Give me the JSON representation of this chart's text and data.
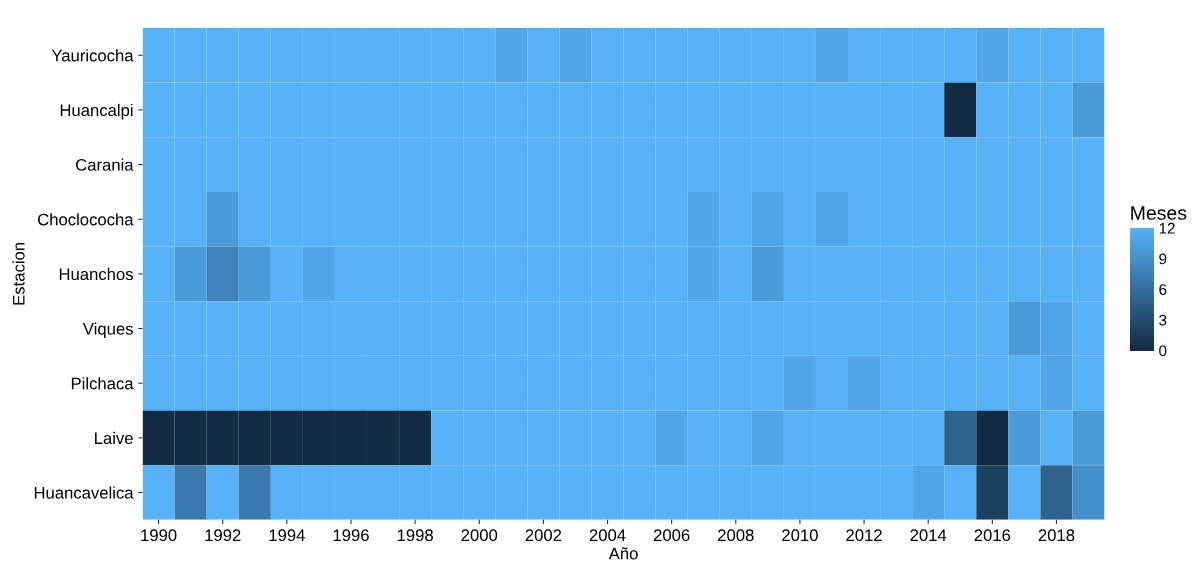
{
  "chart_data": {
    "type": "heatmap",
    "xlabel": "Año",
    "ylabel": "Estacion",
    "legend_title": "Meses",
    "categories": [
      "1990",
      null,
      "1992",
      null,
      "1994",
      null,
      "1996",
      null,
      "1998",
      null,
      "2000",
      null,
      "2002",
      null,
      "2004",
      null,
      "2006",
      null,
      "2008",
      null,
      "2010",
      null,
      "2012",
      null,
      "2014",
      null,
      "2016",
      null,
      "2018",
      null
    ],
    "y_categories": [
      "Yauricocha",
      "Huancalpi",
      "Carania",
      "Choclococha",
      "Huanchos",
      "Viques",
      "Pilchaca",
      "Laive",
      "Huancavelica"
    ],
    "cells": [
      [
        12,
        12,
        12,
        12,
        12,
        12,
        12,
        12,
        12,
        12,
        12,
        11,
        12,
        11,
        12,
        12,
        12,
        12,
        12,
        12,
        12,
        11,
        12,
        12,
        12,
        12,
        11,
        12,
        12,
        12
      ],
      [
        12,
        12,
        12,
        12,
        12,
        12,
        12,
        12,
        12,
        12,
        12,
        12,
        12,
        12,
        12,
        12,
        12,
        12,
        12,
        12,
        12,
        12,
        12,
        12,
        12,
        0,
        12,
        12,
        12,
        10
      ],
      [
        12,
        12,
        12,
        12,
        12,
        12,
        12,
        12,
        12,
        12,
        12,
        12,
        12,
        12,
        12,
        12,
        12,
        12,
        12,
        12,
        12,
        12,
        12,
        12,
        12,
        12,
        12,
        12,
        12,
        12
      ],
      [
        12,
        12,
        10,
        12,
        12,
        12,
        12,
        12,
        12,
        12,
        12,
        12,
        12,
        12,
        12,
        12,
        12,
        11,
        12,
        11,
        12,
        11,
        12,
        12,
        12,
        12,
        12,
        12,
        12,
        12
      ],
      [
        12,
        10,
        8,
        10,
        12,
        11,
        12,
        12,
        12,
        12,
        12,
        12,
        12,
        12,
        12,
        12,
        12,
        11,
        12,
        10,
        12,
        12,
        12,
        12,
        12,
        12,
        12,
        12,
        12,
        12
      ],
      [
        12,
        12,
        12,
        12,
        12,
        12,
        12,
        12,
        12,
        12,
        12,
        12,
        12,
        12,
        12,
        12,
        12,
        12,
        12,
        12,
        12,
        12,
        12,
        12,
        12,
        12,
        12,
        10,
        11,
        12
      ],
      [
        12,
        12,
        12,
        12,
        12,
        12,
        12,
        12,
        12,
        12,
        12,
        12,
        12,
        12,
        12,
        12,
        12,
        12,
        12,
        12,
        11,
        12,
        11,
        12,
        12,
        12,
        12,
        12,
        11,
        12
      ],
      [
        0,
        0,
        0,
        0,
        0,
        0,
        0,
        0,
        0,
        12,
        12,
        12,
        12,
        12,
        12,
        12,
        11,
        12,
        12,
        11,
        12,
        12,
        12,
        12,
        12,
        5,
        0,
        10,
        12,
        10
      ],
      [
        12,
        7,
        12,
        7,
        12,
        12,
        12,
        12,
        12,
        12,
        12,
        12,
        12,
        12,
        12,
        12,
        12,
        12,
        12,
        12,
        12,
        12,
        12,
        12,
        11,
        12,
        2,
        12,
        5,
        9
      ]
    ],
    "clim": [
      0,
      12
    ],
    "cticks": [
      0,
      3,
      6,
      9,
      12
    ],
    "colors": [
      "#132B43",
      "#56B1F7"
    ]
  }
}
